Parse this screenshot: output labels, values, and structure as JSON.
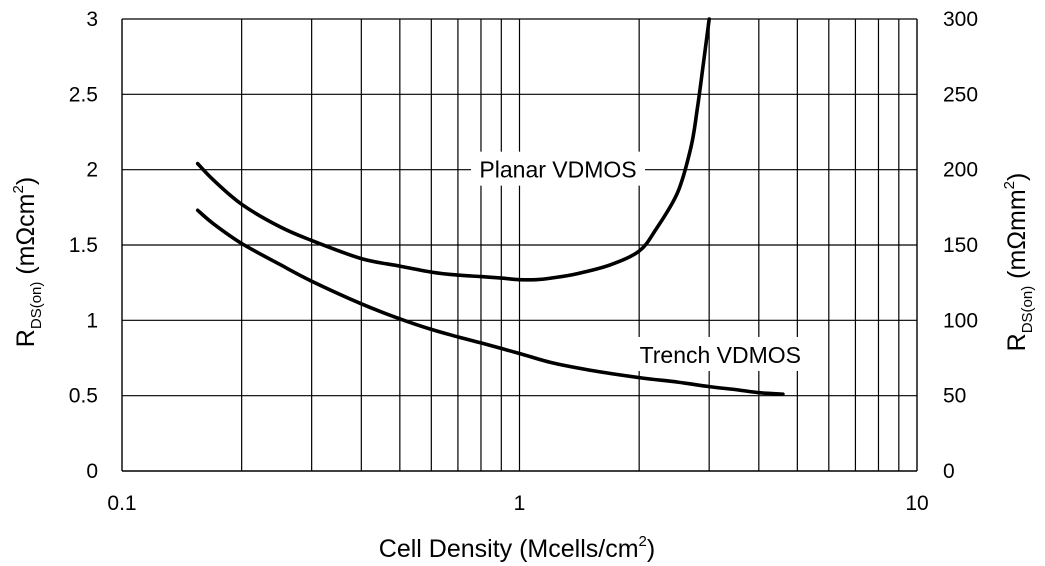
{
  "chart_data": {
    "type": "line",
    "title": "",
    "xlabel": "Cell Density (Mcells/cm2)",
    "xlabel_main": "Cell Density (Mcells/cm",
    "xlabel_sup": "2",
    "xlabel_tail": ")",
    "ylabel": "RDS(on) (mΩcm2)",
    "ylabel_main": "R",
    "ylabel_sub": "DS(on)",
    "ylabel_unit": " (mΩcm",
    "ylabel_sup": "2",
    "ylabel_tail": ")",
    "y2label": "RDS(on) (mΩmm2)",
    "y2label_main": "R",
    "y2label_sub": "DS(on)",
    "y2label_unit": " (mΩmm",
    "y2label_sup": "2",
    "y2label_tail": ")",
    "xscale": "log",
    "xlim": [
      0.1,
      10
    ],
    "ylim": [
      0,
      3
    ],
    "y2lim": [
      0,
      300
    ],
    "grid": true,
    "x_tick_labels": [
      "0.1",
      "1",
      "10"
    ],
    "y_tick_labels": [
      "0",
      "0.5",
      "1",
      "1.5",
      "2",
      "2.5",
      "3"
    ],
    "y2_tick_labels": [
      "0",
      "50",
      "100",
      "150",
      "200",
      "250",
      "300"
    ],
    "series": [
      {
        "name": "Planar VDMOS",
        "color": "#000000",
        "x": [
          0.155,
          0.17,
          0.2,
          0.25,
          0.3,
          0.4,
          0.5,
          0.6,
          0.7,
          0.8,
          0.9,
          1.0,
          1.1,
          1.2,
          1.4,
          1.7,
          2.0,
          2.2,
          2.5,
          2.7,
          2.8,
          2.9,
          3.0
        ],
        "y": [
          2.04,
          1.93,
          1.77,
          1.62,
          1.53,
          1.41,
          1.36,
          1.32,
          1.3,
          1.29,
          1.28,
          1.27,
          1.27,
          1.28,
          1.31,
          1.37,
          1.46,
          1.6,
          1.85,
          2.15,
          2.4,
          2.7,
          3.0
        ]
      },
      {
        "name": "Trench VDMOS",
        "color": "#000000",
        "x": [
          0.155,
          0.17,
          0.2,
          0.25,
          0.3,
          0.4,
          0.5,
          0.6,
          0.7,
          0.8,
          1.0,
          1.2,
          1.5,
          2.0,
          2.5,
          3.0,
          3.5,
          4.0,
          4.6
        ],
        "y": [
          1.73,
          1.64,
          1.51,
          1.37,
          1.26,
          1.11,
          1.01,
          0.94,
          0.89,
          0.85,
          0.78,
          0.72,
          0.67,
          0.62,
          0.59,
          0.56,
          0.54,
          0.52,
          0.51
        ]
      }
    ],
    "annotations": [
      {
        "text": "Planar VDMOS",
        "x": 1.25,
        "y": 2.0
      },
      {
        "text": "Trench VDMOS",
        "x": 3.2,
        "y": 0.77
      }
    ]
  }
}
